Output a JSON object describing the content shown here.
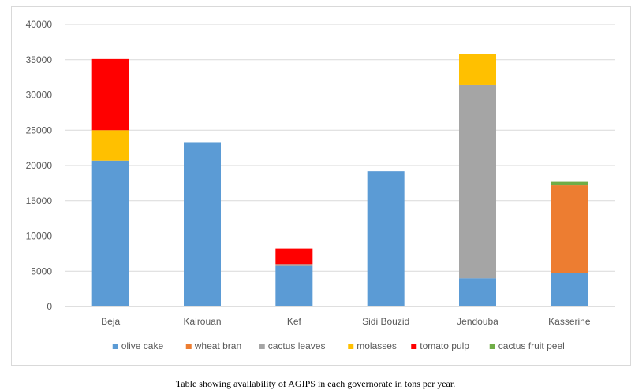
{
  "chart_data": {
    "type": "bar",
    "stacked": true,
    "categories": [
      "Beja",
      "Kairouan",
      "Kef",
      "Sidi Bouzid",
      "Jendouba",
      "Kasserine"
    ],
    "ylim": [
      0,
      40000
    ],
    "yticks": [
      "0",
      "5000",
      "10000",
      "15000",
      "20000",
      "25000",
      "30000",
      "35000",
      "40000"
    ],
    "grid": true,
    "legend_position": "bottom",
    "series": [
      {
        "name": "olive cake",
        "color": "#5b9bd5",
        "values": [
          20700,
          23300,
          5800,
          19200,
          4000,
          4700
        ]
      },
      {
        "name": "wheat bran",
        "color": "#ed7d31",
        "values": [
          0,
          0,
          0,
          0,
          0,
          12500
        ]
      },
      {
        "name": "cactus leaves",
        "color": "#a5a5a5",
        "values": [
          0,
          0,
          200,
          0,
          27400,
          0
        ]
      },
      {
        "name": "molasses",
        "color": "#ffc000",
        "values": [
          4300,
          0,
          0,
          0,
          4400,
          0
        ]
      },
      {
        "name": "tomato pulp",
        "color": "#ff0000",
        "values": [
          10100,
          0,
          2200,
          0,
          0,
          0
        ]
      },
      {
        "name": "cactus fruit peel",
        "color": "#70ad47",
        "values": [
          0,
          0,
          0,
          0,
          0,
          500
        ]
      }
    ]
  },
  "caption": "Table showing availability of AGIPS in each governorate in tons per year."
}
